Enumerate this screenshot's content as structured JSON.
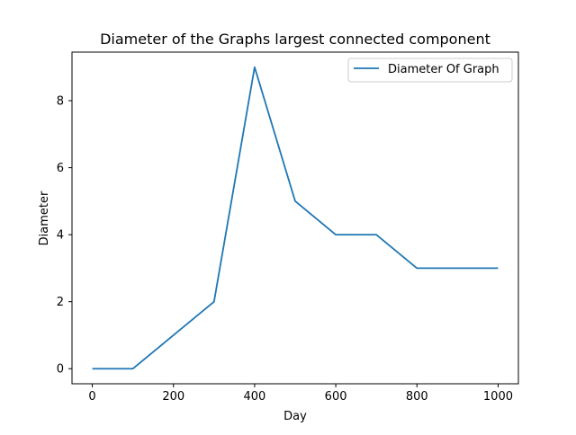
{
  "chart_data": {
    "type": "line",
    "title": "Diameter of the Graphs largest connected component",
    "xlabel": "Day",
    "ylabel": "Diameter",
    "xlim": [
      -50,
      1050
    ],
    "ylim": [
      -0.45,
      9.45
    ],
    "xticks": [
      0,
      200,
      400,
      600,
      800,
      1000
    ],
    "yticks": [
      0,
      2,
      4,
      6,
      8
    ],
    "grid": false,
    "legend_position": "top-right",
    "series": [
      {
        "name": "Diameter Of Graph",
        "color": "#1f77b4",
        "x": [
          0,
          100,
          200,
          300,
          400,
          500,
          600,
          700,
          800,
          900,
          1000
        ],
        "y": [
          0,
          0,
          1,
          2,
          9,
          5,
          4,
          4,
          3,
          3,
          3
        ]
      }
    ]
  }
}
